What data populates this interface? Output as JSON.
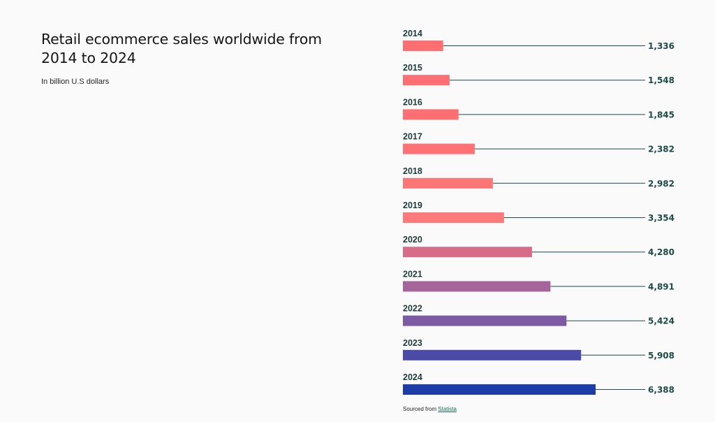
{
  "chart_data": {
    "type": "bar",
    "orientation": "horizontal",
    "title": "Retail ecommerce sales worldwide from 2014 to 2024",
    "subtitle": "In billion U.S dollars",
    "categories": [
      "2014",
      "2015",
      "2016",
      "2017",
      "2018",
      "2019",
      "2020",
      "2021",
      "2022",
      "2023",
      "2024"
    ],
    "values": [
      1336,
      1548,
      1845,
      2382,
      2982,
      3354,
      4280,
      4891,
      5424,
      5908,
      6388
    ],
    "value_labels": [
      "1,336",
      "1,548",
      "1,845",
      "2,382",
      "2,982",
      "3,354",
      "4,280",
      "4,891",
      "5,424",
      "5,908",
      "6,388"
    ],
    "bar_colors": [
      "#fe6f73",
      "#fe6f73",
      "#fe6f73",
      "#fe7275",
      "#fd7676",
      "#fd7a7a",
      "#d66c87",
      "#a6659a",
      "#7d5aa4",
      "#4c4ba7",
      "#1e3ca8"
    ],
    "connector_color": "#1c4a47",
    "value_color": "#1c4a47",
    "grid": false,
    "legend": "none"
  },
  "footer": {
    "source_prefix": "Sourced from",
    "source_link": "Statista"
  }
}
